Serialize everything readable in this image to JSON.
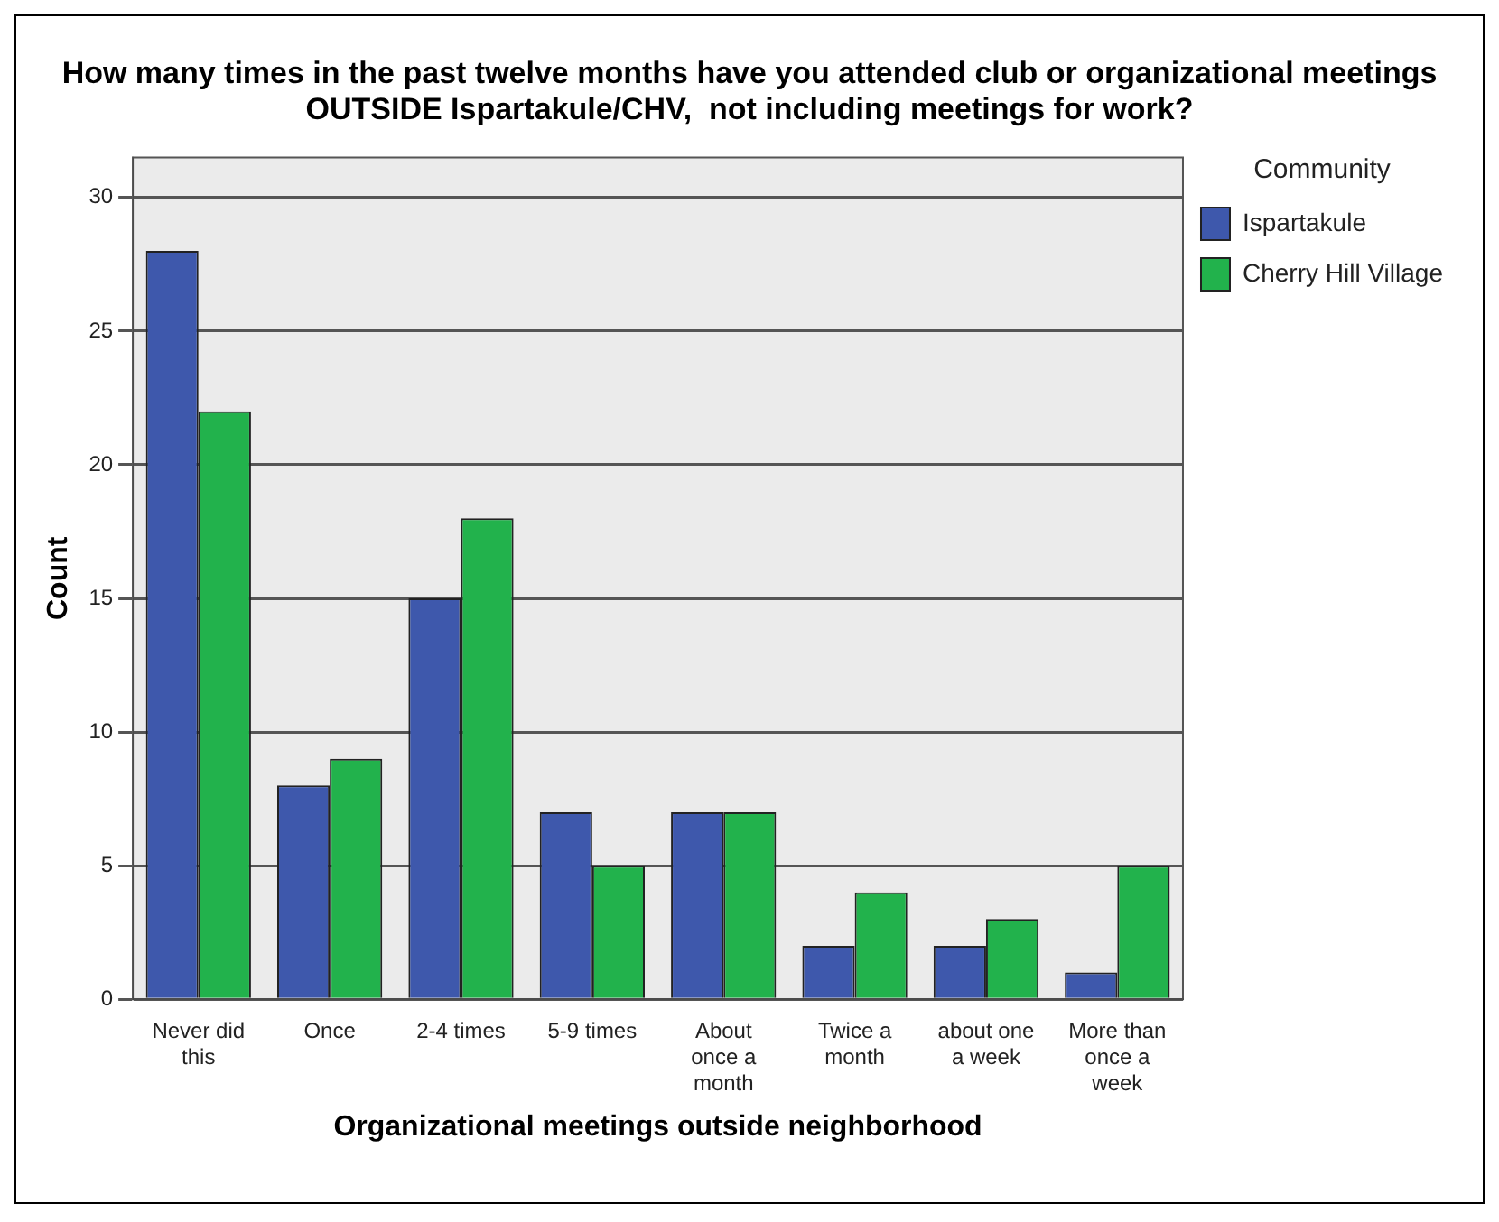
{
  "chart_data": {
    "type": "bar",
    "title": "How many times in the past twelve months have you attended club or organizational meetings OUTSIDE Ispartakule/CHV,  not including meetings for work?",
    "xlabel": "Organizational meetings outside neighborhood",
    "ylabel": "Count",
    "legend_title": "Community",
    "categories": [
      "Never did this",
      "Once",
      "2-4 times",
      "5-9 times",
      "About once a month",
      "Twice a month",
      "about one a week",
      "More than once a week"
    ],
    "series": [
      {
        "name": "Ispartakule",
        "color": "#3e58ac",
        "values": [
          28,
          8,
          15,
          7,
          7,
          2,
          2,
          1
        ]
      },
      {
        "name": "Cherry Hill Village",
        "color": "#22b24c",
        "values": [
          22,
          9,
          18,
          5,
          7,
          4,
          3,
          5
        ]
      }
    ],
    "ylim": [
      0,
      31.5
    ],
    "yticks": [
      0,
      5,
      10,
      15,
      20,
      25,
      30
    ],
    "grid": "y",
    "legend": "top right"
  }
}
